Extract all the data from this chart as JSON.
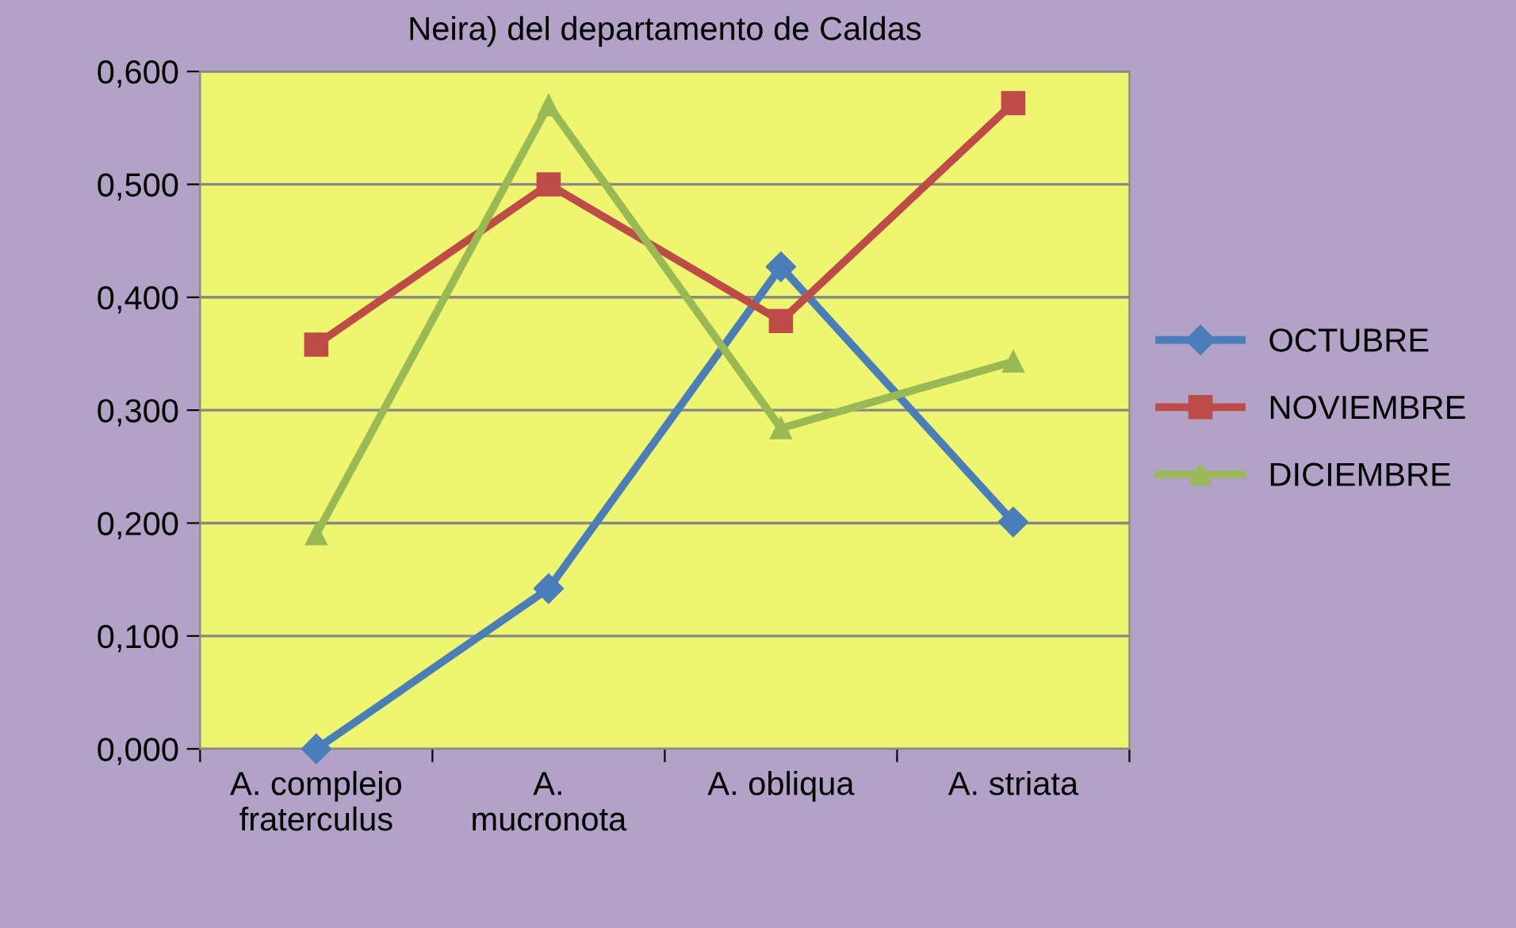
{
  "chart_data": {
    "type": "line",
    "title": "Neira) del departamento de Caldas",
    "categories": [
      "A. complejo\nfraterculus",
      "A.\nmucronota",
      "A. obliqua",
      "A. striata"
    ],
    "series": [
      {
        "name": "OCTUBRE",
        "color": "#4a7ebb",
        "marker": "diamond",
        "values": [
          0.0,
          0.142,
          0.427,
          0.201
        ]
      },
      {
        "name": "NOVIEMBRE",
        "color": "#be4b48",
        "marker": "square",
        "values": [
          0.358,
          0.5,
          0.379,
          0.572
        ]
      },
      {
        "name": "DICIEMBRE",
        "color": "#98b954",
        "marker": "triangle",
        "values": [
          0.19,
          0.57,
          0.284,
          0.343
        ]
      }
    ],
    "ylim": [
      0,
      0.6
    ],
    "yticks": [
      {
        "value": 0,
        "label": "0,000"
      },
      {
        "value": 0.1,
        "label": "0,100"
      },
      {
        "value": 0.2,
        "label": "0,200"
      },
      {
        "value": 0.3,
        "label": "0,300"
      },
      {
        "value": 0.4,
        "label": "0,400"
      },
      {
        "value": 0.5,
        "label": "0,500"
      },
      {
        "value": 0.6,
        "label": "0,600"
      }
    ],
    "grid": "y",
    "legend": "right",
    "line_style": "solid"
  }
}
